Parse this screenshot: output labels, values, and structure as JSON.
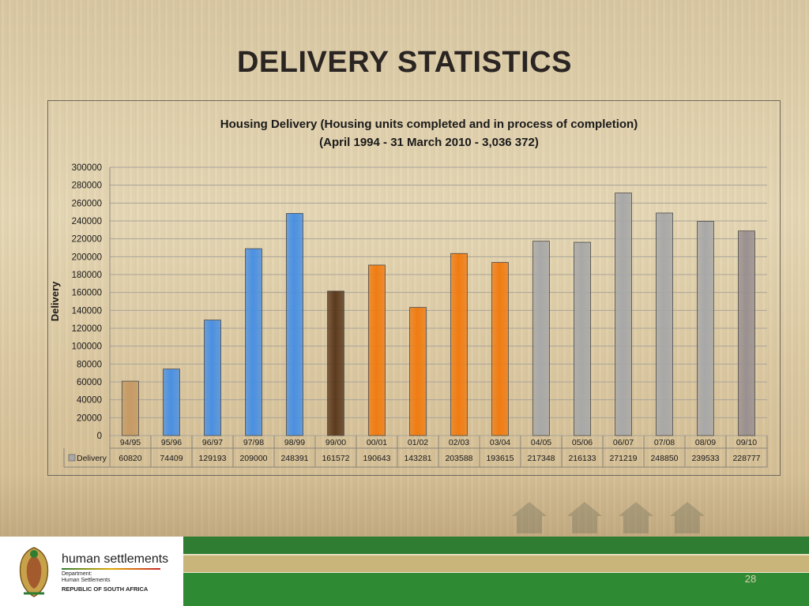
{
  "slide": {
    "title": "DELIVERY STATISTICS",
    "page_number": "28"
  },
  "logo": {
    "name": "human settlements",
    "department_line1": "Department:",
    "department_line2": "Human Settlements",
    "country": "REPUBLIC OF SOUTH AFRICA"
  },
  "colors": {
    "tan_bar": "#c59a64",
    "blue_bar": "#4a90e2",
    "brown_bar": "#5c3a1e",
    "orange_bar": "#f07c12",
    "gray_bar": "#a8a8a8",
    "dark_gray_bar": "#9a9090",
    "footer_green": "#2e7d32",
    "footer_tan": "#c9b47a"
  },
  "chart_data": {
    "type": "bar",
    "title_line1": "Housing Delivery (Housing units completed and in process of completion)",
    "title_line2": "(April 1994 - 31 March 2010 - 3,036 372)",
    "ylabel": "Delivery",
    "xlabel": "",
    "ylim": [
      0,
      300000
    ],
    "ytick_step": 20000,
    "yticks": [
      "0",
      "20000",
      "40000",
      "60000",
      "80000",
      "100000",
      "120000",
      "140000",
      "160000",
      "180000",
      "200000",
      "220000",
      "240000",
      "260000",
      "280000",
      "300000"
    ],
    "grid": true,
    "legend_placement": "data-table-left",
    "data_table": true,
    "categories": [
      "94/95",
      "95/96",
      "96/97",
      "97/98",
      "98/99",
      "99/00",
      "00/01",
      "01/02",
      "02/03",
      "03/04",
      "04/05",
      "05/06",
      "06/07",
      "07/08",
      "08/09",
      "09/10"
    ],
    "series": [
      {
        "name": "Delivery",
        "values": [
          60820,
          74409,
          129193,
          209000,
          248391,
          161572,
          190643,
          143281,
          203588,
          193615,
          217348,
          216133,
          271219,
          248850,
          239533,
          228777
        ],
        "value_labels": [
          "60820",
          "74409",
          "129193",
          "209000",
          "248391",
          "161572",
          "190643",
          "143281",
          "203588",
          "193615",
          "217348",
          "216133",
          "271219",
          "248850",
          "239533",
          "228777"
        ],
        "bar_colors": [
          "tan",
          "blue",
          "blue",
          "blue",
          "blue",
          "brown",
          "orange",
          "orange",
          "orange",
          "orange",
          "gray",
          "gray",
          "gray",
          "gray",
          "gray",
          "dark_gray"
        ]
      }
    ]
  }
}
